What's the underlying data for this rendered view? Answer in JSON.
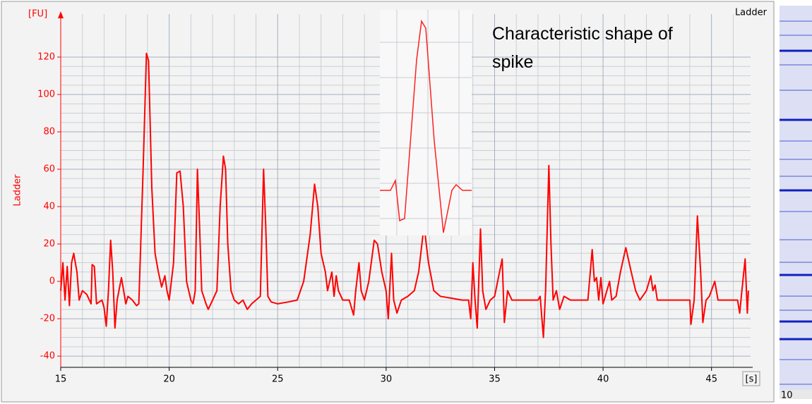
{
  "chart_data": {
    "type": "line",
    "y_unit": "[FU]",
    "y_label": "Ladder",
    "x_unit": "[s]",
    "annotation": "Characteristic shape of spike",
    "xlim": [
      15,
      46.8
    ],
    "xticks": [
      15,
      20,
      25,
      30,
      35,
      40,
      45
    ],
    "ylim": [
      -46,
      143
    ],
    "yticks": [
      -40,
      -20,
      0,
      20,
      40,
      60,
      80,
      100,
      120
    ],
    "grid": true,
    "x": [
      15.0,
      15.1,
      15.2,
      15.3,
      15.4,
      15.5,
      15.6,
      15.75,
      15.85,
      16.0,
      16.2,
      16.4,
      16.45,
      16.55,
      16.65,
      16.9,
      17.0,
      17.1,
      17.2,
      17.3,
      17.4,
      17.5,
      17.6,
      17.8,
      17.9,
      18.0,
      18.1,
      18.3,
      18.5,
      18.6,
      18.8,
      18.95,
      19.05,
      19.2,
      19.35,
      19.5,
      19.65,
      19.8,
      19.9,
      20.0,
      20.2,
      20.35,
      20.5,
      20.65,
      20.8,
      21.0,
      21.1,
      21.2,
      21.3,
      21.4,
      21.5,
      21.7,
      21.8,
      22.0,
      22.2,
      22.35,
      22.5,
      22.6,
      22.7,
      22.85,
      23.0,
      23.2,
      23.4,
      23.6,
      23.8,
      24.0,
      24.2,
      24.35,
      24.45,
      24.55,
      24.7,
      25.0,
      25.5,
      25.9,
      26.2,
      26.5,
      26.7,
      26.85,
      27.0,
      27.2,
      27.3,
      27.5,
      27.6,
      27.7,
      27.8,
      28.0,
      28.3,
      28.5,
      28.6,
      28.75,
      28.85,
      29.0,
      29.2,
      29.45,
      29.6,
      29.8,
      30.0,
      30.1,
      30.25,
      30.35,
      30.5,
      30.7,
      31.0,
      31.3,
      31.5,
      31.75,
      31.95,
      32.2,
      32.5,
      33.0,
      33.5,
      33.8,
      33.9,
      34.0,
      34.1,
      34.2,
      34.35,
      34.45,
      34.6,
      34.8,
      35.0,
      35.35,
      35.45,
      35.6,
      35.8,
      36.5,
      37.0,
      37.1,
      37.25,
      37.35,
      37.5,
      37.6,
      37.7,
      37.85,
      38.0,
      38.2,
      38.5,
      39.0,
      39.3,
      39.5,
      39.6,
      39.7,
      39.8,
      39.9,
      40.0,
      40.3,
      40.4,
      40.6,
      40.8,
      41.05,
      41.3,
      41.5,
      41.7,
      42.0,
      42.2,
      42.3,
      42.4,
      42.5,
      42.8,
      43.5,
      44.0,
      44.05,
      44.2,
      44.35,
      44.5,
      44.6,
      44.75,
      44.9,
      45.15,
      45.3,
      45.5,
      46.0,
      46.2,
      46.3,
      46.4,
      46.55,
      46.65,
      46.7
    ],
    "series": [
      {
        "name": "Ladder",
        "color": "#ff0000",
        "values": [
          -5,
          10,
          -10,
          8,
          -13,
          10,
          15,
          5,
          -10,
          -5,
          -7,
          -12,
          9,
          8,
          -12,
          -10,
          -14,
          -24,
          -5,
          22,
          5,
          -25,
          -10,
          2,
          -5,
          -12,
          -8,
          -10,
          -13,
          -12,
          60,
          122,
          118,
          50,
          15,
          5,
          -3,
          3,
          -5,
          -10,
          10,
          58,
          59,
          40,
          0,
          -10,
          -12,
          -5,
          60,
          30,
          -5,
          -12,
          -15,
          -10,
          -5,
          40,
          67,
          60,
          20,
          -5,
          -10,
          -12,
          -10,
          -15,
          -12,
          -10,
          -8,
          60,
          30,
          -8,
          -11,
          -12,
          -11,
          -10,
          0,
          25,
          52,
          40,
          15,
          5,
          -5,
          5,
          -8,
          3,
          -5,
          -10,
          -10,
          -18,
          -5,
          10,
          -5,
          -10,
          0,
          22,
          20,
          5,
          -5,
          -20,
          15,
          -10,
          -17,
          -10,
          -8,
          -5,
          5,
          30,
          10,
          -5,
          -8,
          -9,
          -10,
          -10,
          -20,
          10,
          -10,
          -25,
          28,
          -5,
          -15,
          -10,
          -8,
          12,
          -22,
          -5,
          -10,
          -10,
          -10,
          -8,
          -30,
          -5,
          62,
          20,
          -10,
          -5,
          -15,
          -8,
          -10,
          -10,
          -10,
          17,
          0,
          2,
          -10,
          2,
          -12,
          0,
          -10,
          -8,
          5,
          18,
          5,
          -5,
          -10,
          -5,
          3,
          -5,
          -2,
          -10,
          -10,
          -10,
          -10,
          -23,
          -10,
          35,
          5,
          -22,
          -10,
          -8,
          0,
          -10,
          -10,
          -10,
          -10,
          -17,
          -5,
          12,
          -17,
          -5
        ]
      }
    ]
  },
  "gel": {
    "label": "10"
  }
}
